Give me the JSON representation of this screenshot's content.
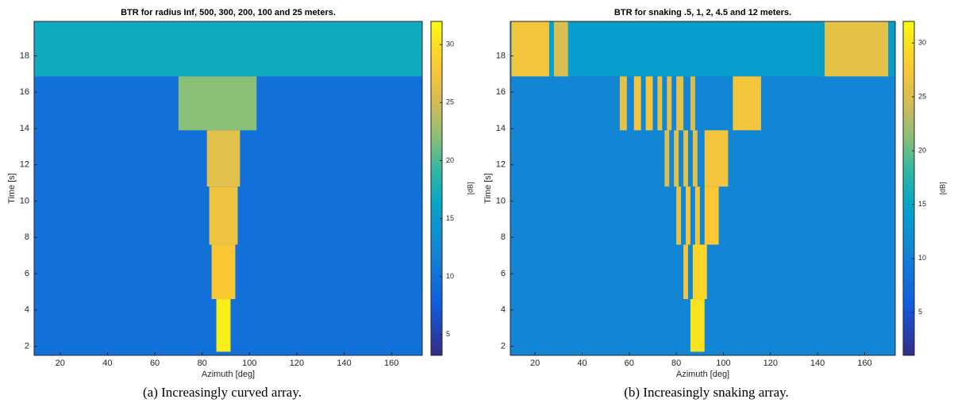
{
  "chart_data": [
    {
      "type": "heatmap",
      "title": "BTR for radius Inf, 500, 300, 200, 100 and 25 meters.",
      "xlabel": "Azimuth [deg]",
      "ylabel": "Time [s]",
      "colorbar_label": "[dB]",
      "caption": "(a) Increasingly curved array.",
      "xlim": [
        9,
        173
      ],
      "xticks": [
        20,
        40,
        60,
        80,
        100,
        120,
        140,
        160
      ],
      "ylim": [
        1.5,
        19.9
      ],
      "yticks": [
        2,
        4,
        6,
        8,
        10,
        12,
        14,
        16,
        18
      ],
      "clim": [
        3.2,
        32
      ],
      "cticks": [
        5,
        10,
        15,
        20,
        25,
        30
      ],
      "background": 10,
      "regions": [
        {
          "azimuth": [
            9,
            173
          ],
          "time": [
            16.87,
            19.9
          ],
          "level": 17
        },
        {
          "azimuth": [
            70,
            103
          ],
          "time": [
            13.9,
            16.87
          ],
          "level": 22
        },
        {
          "azimuth": [
            82,
            96
          ],
          "time": [
            10.8,
            13.9
          ],
          "level": 26
        },
        {
          "azimuth": [
            83,
            95
          ],
          "time": [
            7.6,
            10.8
          ],
          "level": 27
        },
        {
          "azimuth": [
            84,
            94
          ],
          "time": [
            4.6,
            7.6
          ],
          "level": 28
        },
        {
          "azimuth": [
            86,
            92
          ],
          "time": [
            1.7,
            4.6
          ],
          "level": 31
        }
      ]
    },
    {
      "type": "heatmap",
      "title": "BTR for snaking .5, 1, 2, 4.5 and 12 meters.",
      "xlabel": "Azimuth [deg]",
      "ylabel": "Time [s]",
      "colorbar_label": "[dB]",
      "caption": "(b) Increasingly snaking array.",
      "xlim": [
        9.5,
        173
      ],
      "xticks": [
        20,
        40,
        60,
        80,
        100,
        120,
        140,
        160
      ],
      "ylim": [
        1.5,
        19.9
      ],
      "yticks": [
        2,
        4,
        6,
        8,
        10,
        12,
        14,
        16,
        18
      ],
      "clim": [
        1,
        32
      ],
      "cticks": [
        5,
        10,
        15,
        20,
        25,
        30
      ],
      "background": 11,
      "regions": [
        {
          "azimuth": [
            9.5,
            173
          ],
          "time": [
            16.87,
            19.9
          ],
          "level": 14
        },
        {
          "azimuth": [
            10,
            26
          ],
          "time": [
            16.87,
            19.9
          ],
          "level": 27
        },
        {
          "azimuth": [
            28,
            34
          ],
          "time": [
            16.87,
            19.9
          ],
          "level": 25
        },
        {
          "azimuth": [
            143,
            170
          ],
          "time": [
            16.87,
            19.9
          ],
          "level": 26
        },
        {
          "azimuth": [
            56,
            59
          ],
          "time": [
            13.9,
            16.87
          ],
          "level": 26
        },
        {
          "azimuth": [
            62,
            65
          ],
          "time": [
            13.9,
            16.87
          ],
          "level": 27
        },
        {
          "azimuth": [
            67,
            70
          ],
          "time": [
            13.9,
            16.87
          ],
          "level": 27
        },
        {
          "azimuth": [
            72,
            74
          ],
          "time": [
            13.9,
            16.87
          ],
          "level": 26
        },
        {
          "azimuth": [
            76,
            78
          ],
          "time": [
            13.9,
            16.87
          ],
          "level": 26
        },
        {
          "azimuth": [
            80,
            83
          ],
          "time": [
            13.9,
            16.87
          ],
          "level": 26
        },
        {
          "azimuth": [
            86,
            88
          ],
          "time": [
            13.9,
            16.87
          ],
          "level": 25
        },
        {
          "azimuth": [
            104,
            116
          ],
          "time": [
            13.9,
            16.87
          ],
          "level": 27
        },
        {
          "azimuth": [
            75,
            77
          ],
          "time": [
            10.8,
            13.9
          ],
          "level": 25
        },
        {
          "azimuth": [
            79,
            81
          ],
          "time": [
            10.8,
            13.9
          ],
          "level": 26
        },
        {
          "azimuth": [
            83,
            85
          ],
          "time": [
            10.8,
            13.9
          ],
          "level": 26
        },
        {
          "azimuth": [
            87,
            89
          ],
          "time": [
            10.8,
            13.9
          ],
          "level": 26
        },
        {
          "azimuth": [
            92,
            102
          ],
          "time": [
            10.8,
            13.9
          ],
          "level": 27
        },
        {
          "azimuth": [
            80,
            82
          ],
          "time": [
            7.6,
            10.8
          ],
          "level": 26
        },
        {
          "azimuth": [
            84,
            86
          ],
          "time": [
            7.6,
            10.8
          ],
          "level": 27
        },
        {
          "azimuth": [
            88,
            90
          ],
          "time": [
            7.6,
            10.8
          ],
          "level": 27
        },
        {
          "azimuth": [
            92,
            98
          ],
          "time": [
            7.6,
            10.8
          ],
          "level": 28
        },
        {
          "azimuth": [
            83,
            85
          ],
          "time": [
            4.6,
            7.6
          ],
          "level": 27
        },
        {
          "azimuth": [
            87,
            93
          ],
          "time": [
            4.6,
            7.6
          ],
          "level": 29
        },
        {
          "azimuth": [
            86,
            92
          ],
          "time": [
            1.7,
            4.6
          ],
          "level": 30
        }
      ]
    }
  ]
}
